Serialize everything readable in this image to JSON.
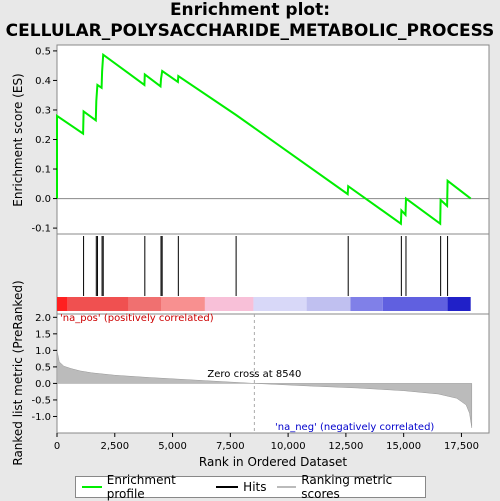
{
  "chart_data": {
    "type": "line",
    "title_line1": "Enrichment plot:",
    "title_line2": "CELLULAR_POLYSACCHARIDE_METABOLIC_PROCESS",
    "es_ylabel": "Enrichment score (ES)",
    "rank_ylabel": "Ranked list metric (PreRanked)",
    "xlabel": "Rank in Ordered Dataset",
    "xlim": [
      0,
      18000
    ],
    "es_ylim": [
      -0.12,
      0.52
    ],
    "rank_ylim": [
      -1.5,
      2.1
    ],
    "x_ticks": [
      0,
      2500,
      5000,
      7500,
      10000,
      12500,
      15000,
      17500
    ],
    "x_tick_labels": [
      "0",
      "2,500",
      "5,000",
      "7,500",
      "10,000",
      "12,500",
      "15,000",
      "17,500"
    ],
    "es_ticks": [
      -0.1,
      0.0,
      0.1,
      0.2,
      0.3,
      0.4,
      0.5
    ],
    "es_tick_labels": [
      "-0.1",
      "0.0",
      "0.1",
      "0.2",
      "0.3",
      "0.4",
      "0.5"
    ],
    "rank_ticks": [
      -1.0,
      -0.5,
      0.0,
      0.5,
      1.0,
      1.5,
      2.0
    ],
    "rank_tick_labels": [
      "-1.0",
      "-0.5",
      "0.0",
      "0.5",
      "1.0",
      "1.5",
      "2.0"
    ],
    "hits": [
      1150,
      1700,
      1750,
      1950,
      2000,
      3800,
      4500,
      4550,
      5250,
      7750,
      12600,
      14900,
      15100,
      16600,
      16900
    ],
    "es_points": [
      [
        0,
        0.0
      ],
      [
        0,
        0.28
      ],
      [
        1130,
        0.22
      ],
      [
        1150,
        0.295
      ],
      [
        1680,
        0.265
      ],
      [
        1700,
        0.33
      ],
      [
        1750,
        0.385
      ],
      [
        1930,
        0.375
      ],
      [
        1950,
        0.43
      ],
      [
        2000,
        0.487
      ],
      [
        3780,
        0.385
      ],
      [
        3800,
        0.42
      ],
      [
        4480,
        0.38
      ],
      [
        4500,
        0.405
      ],
      [
        4550,
        0.432
      ],
      [
        5230,
        0.395
      ],
      [
        5250,
        0.415
      ],
      [
        7750,
        0.283
      ],
      [
        12580,
        0.015
      ],
      [
        12600,
        0.042
      ],
      [
        14880,
        -0.085
      ],
      [
        14900,
        -0.04
      ],
      [
        15080,
        -0.055
      ],
      [
        15100,
        0.0
      ],
      [
        16580,
        -0.085
      ],
      [
        16600,
        -0.005
      ],
      [
        16880,
        -0.025
      ],
      [
        16900,
        0.06
      ],
      [
        17900,
        0.0
      ]
    ],
    "zero_cross": 8540,
    "zero_cross_label": "Zero cross at 8540",
    "pos_label": "'na_pos' (positively correlated)",
    "neg_label": "'na_neg' (negatively correlated)",
    "heat_segments": [
      {
        "x0": 0,
        "x1": 450,
        "color": "#ff2020"
      },
      {
        "x0": 450,
        "x1": 3100,
        "color": "#f05050"
      },
      {
        "x0": 3100,
        "x1": 4500,
        "color": "#f07070"
      },
      {
        "x0": 4500,
        "x1": 6400,
        "color": "#f89090"
      },
      {
        "x0": 6400,
        "x1": 8500,
        "color": "#f8c0d8"
      },
      {
        "x0": 8500,
        "x1": 10800,
        "color": "#d8d8f8"
      },
      {
        "x0": 10800,
        "x1": 12700,
        "color": "#c0c0f0"
      },
      {
        "x0": 12700,
        "x1": 14100,
        "color": "#8080e8"
      },
      {
        "x0": 14100,
        "x1": 16900,
        "color": "#6060e0"
      },
      {
        "x0": 16900,
        "x1": 17900,
        "color": "#2020c8"
      }
    ],
    "rank_curve": [
      [
        0,
        1.0
      ],
      [
        100,
        0.65
      ],
      [
        300,
        0.52
      ],
      [
        600,
        0.45
      ],
      [
        1000,
        0.38
      ],
      [
        1500,
        0.32
      ],
      [
        2500,
        0.25
      ],
      [
        4000,
        0.18
      ],
      [
        6000,
        0.1
      ],
      [
        8540,
        0.0
      ],
      [
        11000,
        -0.08
      ],
      [
        13000,
        -0.14
      ],
      [
        15000,
        -0.22
      ],
      [
        16500,
        -0.32
      ],
      [
        17300,
        -0.45
      ],
      [
        17700,
        -0.65
      ],
      [
        17850,
        -0.9
      ],
      [
        17950,
        -1.35
      ]
    ],
    "legend": [
      {
        "label": "Enrichment profile",
        "color": "#00ee00"
      },
      {
        "label": "Hits",
        "color": "#000000"
      },
      {
        "label": "Ranking metric scores",
        "color": "#bbbbbb"
      }
    ]
  }
}
